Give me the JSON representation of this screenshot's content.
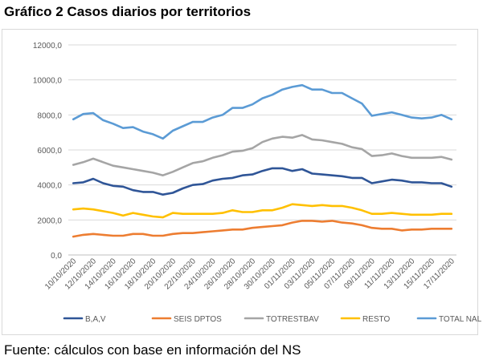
{
  "title": "Gráfico 2 Casos diarios por territorios",
  "source": "Fuente: cálculos con base en información del NS",
  "chart_data": {
    "type": "line",
    "x": [
      "10/10/2020",
      "11/10/2020",
      "12/10/2020",
      "13/10/2020",
      "14/10/2020",
      "15/10/2020",
      "16/10/2020",
      "17/10/2020",
      "18/10/2020",
      "19/10/2020",
      "20/10/2020",
      "21/10/2020",
      "22/10/2020",
      "23/10/2020",
      "24/10/2020",
      "25/10/2020",
      "26/10/2020",
      "27/10/2020",
      "28/10/2020",
      "29/10/2020",
      "30/10/2020",
      "31/10/2020",
      "01/11/2020",
      "02/11/2020",
      "03/11/2020",
      "04/11/2020",
      "05/11/2020",
      "06/11/2020",
      "07/11/2020",
      "08/11/2020",
      "09/11/2020",
      "10/11/2020",
      "11/11/2020",
      "12/11/2020",
      "13/11/2020",
      "14/11/2020",
      "15/11/2020",
      "16/11/2020",
      "17/11/2020"
    ],
    "x_tick_labels": [
      "10/10/2020",
      "12/10/2020",
      "14/10/2020",
      "16/10/2020",
      "18/10/2020",
      "20/10/2020",
      "22/10/2020",
      "24/10/2020",
      "26/10/2020",
      "28/10/2020",
      "30/10/2020",
      "01/11/2020",
      "03/11/2020",
      "05/11/2020",
      "07/11/2020",
      "09/11/2020",
      "11/11/2020",
      "13/11/2020",
      "15/11/2020",
      "17/11/2020"
    ],
    "y_tick_labels": [
      "0,0",
      "2000,0",
      "4000,0",
      "6000,0",
      "8000,0",
      "10000,0",
      "12000,0"
    ],
    "ylim": [
      0,
      12000
    ],
    "grid": "horizontal",
    "legend_position": "bottom",
    "series": [
      {
        "name": "B,A,V",
        "color": "#2f5597",
        "values": [
          4100,
          4150,
          4350,
          4100,
          3950,
          3900,
          3700,
          3600,
          3600,
          3450,
          3550,
          3800,
          4000,
          4050,
          4250,
          4350,
          4400,
          4550,
          4600,
          4800,
          4950,
          4950,
          4800,
          4900,
          4650,
          4600,
          4550,
          4500,
          4400,
          4400,
          4100,
          4200,
          4300,
          4250,
          4150,
          4150,
          4100,
          4100,
          3900
        ]
      },
      {
        "name": "SEIS DPTOS",
        "color": "#ed7d31",
        "values": [
          1050,
          1150,
          1200,
          1150,
          1100,
          1100,
          1200,
          1200,
          1100,
          1100,
          1200,
          1250,
          1250,
          1300,
          1350,
          1400,
          1450,
          1450,
          1550,
          1600,
          1650,
          1700,
          1850,
          1950,
          1950,
          1900,
          1950,
          1850,
          1800,
          1700,
          1550,
          1500,
          1500,
          1400,
          1450,
          1450,
          1500,
          1500,
          1500
        ]
      },
      {
        "name": "TOTRESTBAV",
        "color": "#a5a5a5",
        "values": [
          5150,
          5300,
          5500,
          5300,
          5100,
          5000,
          4900,
          4800,
          4700,
          4550,
          4750,
          5000,
          5250,
          5350,
          5550,
          5700,
          5900,
          5950,
          6100,
          6450,
          6650,
          6750,
          6700,
          6850,
          6600,
          6550,
          6450,
          6350,
          6150,
          6050,
          5650,
          5700,
          5800,
          5650,
          5550,
          5550,
          5550,
          5600,
          5450
        ]
      },
      {
        "name": "RESTO",
        "color": "#ffc000",
        "values": [
          2600,
          2650,
          2600,
          2500,
          2400,
          2250,
          2400,
          2300,
          2200,
          2150,
          2400,
          2350,
          2350,
          2350,
          2350,
          2400,
          2550,
          2450,
          2450,
          2550,
          2550,
          2700,
          2900,
          2850,
          2800,
          2850,
          2800,
          2800,
          2700,
          2550,
          2350,
          2350,
          2400,
          2350,
          2300,
          2300,
          2300,
          2350,
          2350
        ]
      },
      {
        "name": "TOTAL NAL",
        "color": "#5b9bd5",
        "values": [
          7750,
          8050,
          8100,
          7700,
          7500,
          7250,
          7300,
          7050,
          6900,
          6650,
          7100,
          7350,
          7600,
          7600,
          7850,
          8000,
          8400,
          8400,
          8600,
          8950,
          9150,
          9450,
          9600,
          9700,
          9450,
          9450,
          9250,
          9250,
          8950,
          8650,
          7950,
          8050,
          8150,
          8000,
          7850,
          7800,
          7850,
          8000,
          7750
        ]
      }
    ]
  }
}
